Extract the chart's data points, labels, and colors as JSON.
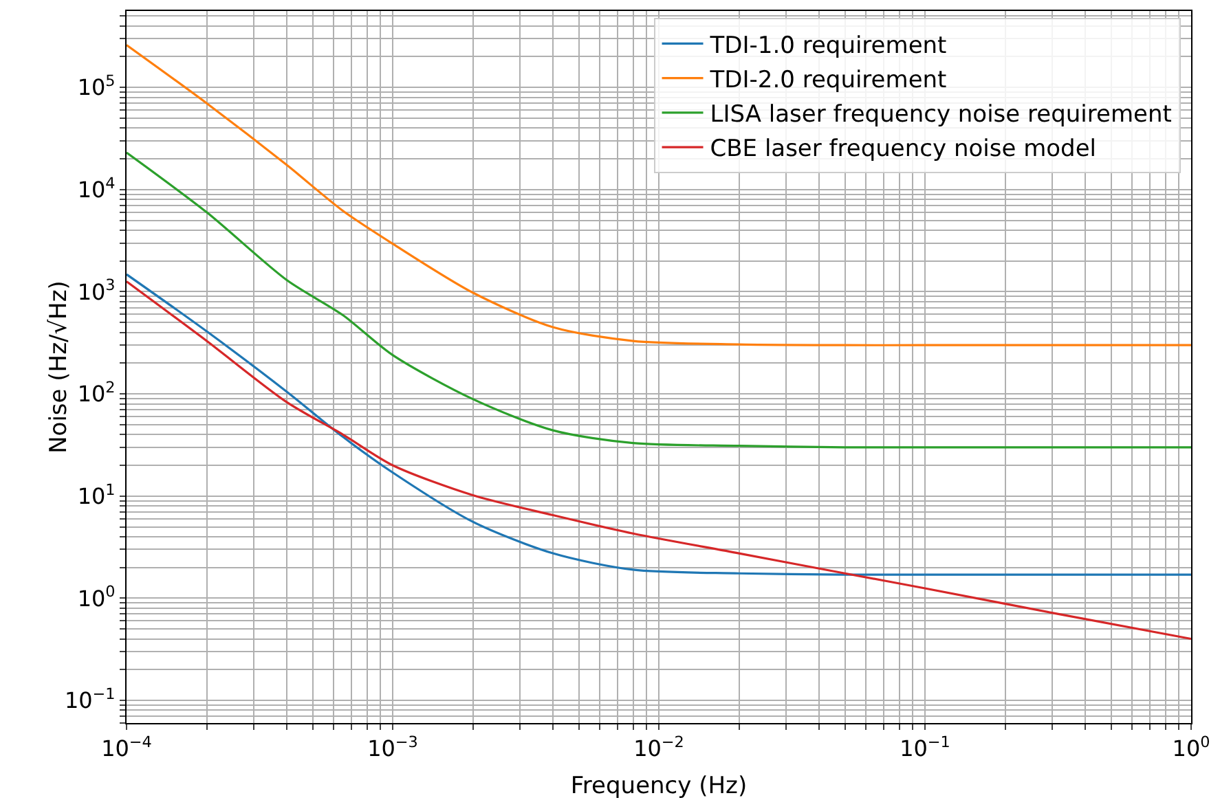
{
  "chart_data": {
    "type": "line",
    "xlabel": "Frequency (Hz)",
    "ylabel": "Noise (Hz/√Hz)",
    "log": "xy",
    "grid": true,
    "legend": "top right",
    "line_style": "solid",
    "marker": "none",
    "xlim": [
      0.0001,
      1
    ],
    "ylim": [
      0.06,
      560000
    ],
    "xticks": [
      {
        "value": 0.0001,
        "label": "10$^{−4}$"
      },
      {
        "value": 0.0002,
        "label": null
      },
      {
        "value": 0.0003,
        "label": null
      },
      {
        "value": 0.0004,
        "label": null
      },
      {
        "value": 0.0005,
        "label": null
      },
      {
        "value": 0.0006,
        "label": null
      },
      {
        "value": 0.0007,
        "label": null
      },
      {
        "value": 0.0008,
        "label": null
      },
      {
        "value": 0.0009,
        "label": null
      },
      {
        "value": 0.001,
        "label": "10$^{−3}$"
      },
      {
        "value": 0.002,
        "label": null
      },
      {
        "value": 0.003,
        "label": null
      },
      {
        "value": 0.004,
        "label": null
      },
      {
        "value": 0.005,
        "label": null
      },
      {
        "value": 0.006,
        "label": null
      },
      {
        "value": 0.007,
        "label": null
      },
      {
        "value": 0.008,
        "label": null
      },
      {
        "value": 0.009,
        "label": null
      },
      {
        "value": 0.01,
        "label": "10$^{−2}$"
      },
      {
        "value": 0.02,
        "label": null
      },
      {
        "value": 0.03,
        "label": null
      },
      {
        "value": 0.04,
        "label": null
      },
      {
        "value": 0.05,
        "label": null
      },
      {
        "value": 0.06,
        "label": null
      },
      {
        "value": 0.07,
        "label": null
      },
      {
        "value": 0.08,
        "label": null
      },
      {
        "value": 0.09,
        "label": null
      },
      {
        "value": 0.1,
        "label": "10$^{−1}$"
      },
      {
        "value": 0.2,
        "label": null
      },
      {
        "value": 0.3,
        "label": null
      },
      {
        "value": 0.4,
        "label": null
      },
      {
        "value": 0.5,
        "label": null
      },
      {
        "value": 0.6,
        "label": null
      },
      {
        "value": 0.7,
        "label": null
      },
      {
        "value": 0.8,
        "label": null
      },
      {
        "value": 0.9,
        "label": null
      },
      {
        "value": 1,
        "label": "10$^{0}$"
      }
    ],
    "yticks": [
      {
        "value": 0.06,
        "label": null
      },
      {
        "value": 0.07,
        "label": null
      },
      {
        "value": 0.08,
        "label": null
      },
      {
        "value": 0.09,
        "label": null
      },
      {
        "value": 0.1,
        "label": "10$^{−1}$"
      },
      {
        "value": 0.2,
        "label": null
      },
      {
        "value": 0.3,
        "label": null
      },
      {
        "value": 0.4,
        "label": null
      },
      {
        "value": 0.5,
        "label": null
      },
      {
        "value": 0.6,
        "label": null
      },
      {
        "value": 0.7,
        "label": null
      },
      {
        "value": 0.8,
        "label": null
      },
      {
        "value": 0.9,
        "label": null
      },
      {
        "value": 1,
        "label": "10$^{0}$"
      },
      {
        "value": 2,
        "label": null
      },
      {
        "value": 3,
        "label": null
      },
      {
        "value": 4,
        "label": null
      },
      {
        "value": 5,
        "label": null
      },
      {
        "value": 6,
        "label": null
      },
      {
        "value": 7,
        "label": null
      },
      {
        "value": 8,
        "label": null
      },
      {
        "value": 9,
        "label": null
      },
      {
        "value": 10,
        "label": "10$^{1}$"
      },
      {
        "value": 20,
        "label": null
      },
      {
        "value": 30,
        "label": null
      },
      {
        "value": 40,
        "label": null
      },
      {
        "value": 50,
        "label": null
      },
      {
        "value": 60,
        "label": null
      },
      {
        "value": 70,
        "label": null
      },
      {
        "value": 80,
        "label": null
      },
      {
        "value": 90,
        "label": null
      },
      {
        "value": 100,
        "label": "10$^{2}$"
      },
      {
        "value": 200,
        "label": null
      },
      {
        "value": 300,
        "label": null
      },
      {
        "value": 400,
        "label": null
      },
      {
        "value": 500,
        "label": null
      },
      {
        "value": 600,
        "label": null
      },
      {
        "value": 700,
        "label": null
      },
      {
        "value": 800,
        "label": null
      },
      {
        "value": 900,
        "label": null
      },
      {
        "value": 1000,
        "label": "10$^{3}$"
      },
      {
        "value": 2000,
        "label": null
      },
      {
        "value": 3000,
        "label": null
      },
      {
        "value": 4000,
        "label": null
      },
      {
        "value": 5000,
        "label": null
      },
      {
        "value": 6000,
        "label": null
      },
      {
        "value": 7000,
        "label": null
      },
      {
        "value": 8000,
        "label": null
      },
      {
        "value": 9000,
        "label": null
      },
      {
        "value": 10000,
        "label": "10$^{4}$"
      },
      {
        "value": 20000,
        "label": null
      },
      {
        "value": 30000,
        "label": null
      },
      {
        "value": 40000,
        "label": null
      },
      {
        "value": 50000,
        "label": null
      },
      {
        "value": 60000,
        "label": null
      },
      {
        "value": 70000,
        "label": null
      },
      {
        "value": 80000,
        "label": null
      },
      {
        "value": 90000,
        "label": null
      },
      {
        "value": 100000,
        "label": "10$^{5}$"
      },
      {
        "value": 200000,
        "label": null
      },
      {
        "value": 300000,
        "label": null
      },
      {
        "value": 400000,
        "label": null
      },
      {
        "value": 500000,
        "label": null
      }
    ],
    "x": [
      0.0001,
      0.0002,
      0.0004,
      0.00065,
      0.001,
      0.002,
      0.004,
      0.008,
      0.02,
      0.05,
      0.1,
      0.3,
      1
    ],
    "series": [
      {
        "name": "TDI-1.0 requirement",
        "color": "#1f77b4",
        "values": [
          1480,
          410,
          105,
          38,
          17,
          5.6,
          2.75,
          1.9,
          1.75,
          1.7,
          1.7,
          1.7,
          1.7
        ]
      },
      {
        "name": "TDI-2.0 requirement",
        "color": "#ff7f0e",
        "values": [
          260000,
          70000,
          17400,
          6200,
          2950,
          980,
          450,
          330,
          305,
          300,
          300,
          300,
          300
        ]
      },
      {
        "name": "LISA laser frequency noise requirement",
        "color": "#2ca02c",
        "values": [
          23000,
          6000,
          1300,
          590,
          240,
          89,
          44,
          33,
          31,
          30,
          30,
          30,
          30
        ]
      },
      {
        "name": "CBE laser frequency noise model",
        "color": "#d62728",
        "values": [
          1260,
          330,
          83,
          40,
          20,
          10.2,
          6.5,
          4.3,
          2.75,
          1.75,
          1.25,
          0.72,
          0.4
        ]
      }
    ]
  }
}
